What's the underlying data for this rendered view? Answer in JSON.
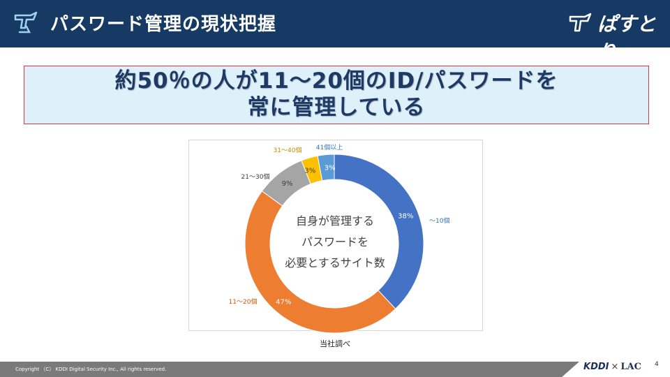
{
  "header": {
    "title": "パスワード管理の現状把握",
    "brand": "ぱすとり"
  },
  "headline": {
    "line1": "約50％の人が11～20個のID/パスワードを",
    "line2": "常に管理している"
  },
  "chart_data": {
    "type": "pie",
    "style": "donut",
    "center_label": [
      "自身が管理する",
      "パスワードを",
      "必要とするサイト数"
    ],
    "categories": [
      "～10個",
      "11～20個",
      "21～30個",
      "31～40個",
      "41個以上"
    ],
    "values": [
      38,
      47,
      9,
      3,
      3
    ],
    "value_labels": [
      "38%",
      "47%",
      "9%",
      "3%",
      "3%"
    ],
    "colors": [
      "#4472c4",
      "#ed7d31",
      "#a5a5a5",
      "#ffc000",
      "#5b9bd5"
    ],
    "label_colors": [
      "#2e75b6",
      "#c55a11",
      "#404040",
      "#bf8f00",
      "#2e75b6"
    ]
  },
  "source": "当社調べ",
  "footer": {
    "copyright": "Copyright （C） KDDI Digital Security Inc., All rights reserved.",
    "partner_left": "KDDI",
    "partner_times": "×",
    "partner_right": "LAC",
    "page_number": "4"
  }
}
